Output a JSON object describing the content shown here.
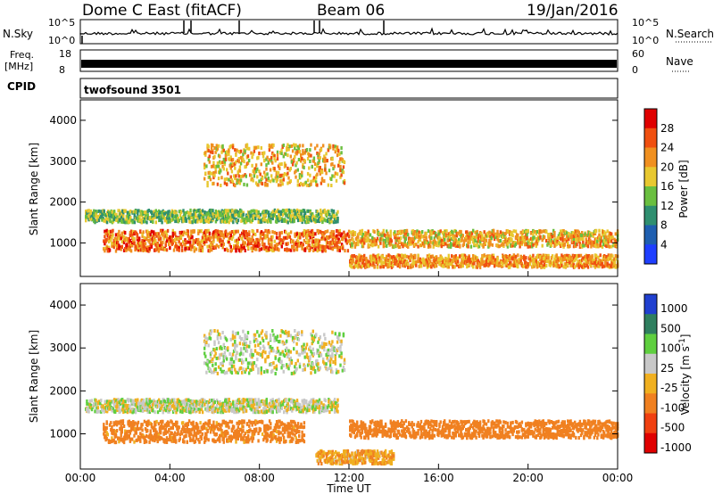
{
  "header": {
    "station": "Dome C East (fitACF)",
    "beam": "Beam 06",
    "date": "19/Jan/2016"
  },
  "top_panels": {
    "nsky_label": "N.Sky",
    "nsky_ticks": [
      "10^5",
      "10^0"
    ],
    "nsearch_label": "N.Search",
    "nsearch_ticks": [
      "10^5",
      "10^0"
    ],
    "freq_label_1": "Freq.",
    "freq_label_2": "[MHz]",
    "freq_ticks": [
      "18",
      "8"
    ],
    "nave_label": "Nave",
    "nave_ticks": [
      "60",
      "0"
    ],
    "cpid_label": "CPID",
    "cpid_value": "twofsound 3501"
  },
  "chart_data": [
    {
      "type": "heatmap",
      "name": "power",
      "ylabel": "Slant Range [km]",
      "xlabel": "",
      "xlim": [
        "00:00",
        "24:00"
      ],
      "ylim": [
        180,
        4500
      ],
      "yticks": [
        "1000",
        "2000",
        "3000",
        "4000"
      ],
      "colorbar": {
        "label": "Power [dB]",
        "ticks": [
          "4",
          "8",
          "12",
          "16",
          "20",
          "24",
          "28"
        ],
        "range": [
          0,
          32
        ],
        "colors": [
          "#1f3fff",
          "#1f5fb0",
          "#2f8f70",
          "#6abf40",
          "#e8c830",
          "#f09020",
          "#f05010",
          "#e00000"
        ]
      },
      "features": [
        {
          "t_start": 0.2,
          "t_end": 11.5,
          "range_km": [
            1500,
            1800
          ],
          "level_db": 14
        },
        {
          "t_start": 1.0,
          "t_end": 12.0,
          "range_km": [
            800,
            1300
          ],
          "level_db": 24
        },
        {
          "t_start": 5.5,
          "t_end": 11.8,
          "range_km": [
            2400,
            3400
          ],
          "level_db": 20
        },
        {
          "t_start": 12.0,
          "t_end": 24.0,
          "range_km": [
            900,
            1300
          ],
          "level_db": 20
        },
        {
          "t_start": 12.0,
          "t_end": 24.0,
          "range_km": [
            400,
            700
          ],
          "level_db": 22
        }
      ]
    },
    {
      "type": "heatmap",
      "name": "velocity",
      "ylabel": "Slant Range [km]",
      "xlabel": "Time UT",
      "xlim": [
        "00:00",
        "24:00"
      ],
      "ylim": [
        180,
        4500
      ],
      "yticks": [
        "1000",
        "2000",
        "3000",
        "4000"
      ],
      "xticks": [
        "00:00",
        "04:00",
        "08:00",
        "12:00",
        "16:00",
        "20:00",
        "00:00"
      ],
      "colorbar": {
        "label": "Velocity [m s",
        "label_sup": "-1",
        "label_end": "]",
        "ticks": [
          "1000",
          "500",
          "100",
          "25",
          "-25",
          "-100",
          "-500",
          "-1000"
        ],
        "colors": [
          "#2040d0",
          "#2f7f5f",
          "#5fcf3f",
          "#c8c8c8",
          "#f0b020",
          "#f08020",
          "#f04010",
          "#e00000"
        ]
      },
      "features": [
        {
          "t_start": 0.2,
          "t_end": 11.5,
          "range_km": [
            1500,
            1800
          ],
          "velocity_ms": 0
        },
        {
          "t_start": 1.0,
          "t_end": 10.0,
          "range_km": [
            800,
            1300
          ],
          "velocity_ms": -150
        },
        {
          "t_start": 5.5,
          "t_end": 11.8,
          "range_km": [
            2400,
            3400
          ],
          "velocity_ms": 0
        },
        {
          "t_start": 12.0,
          "t_end": 24.0,
          "range_km": [
            900,
            1300
          ],
          "velocity_ms": -300
        },
        {
          "t_start": 10.5,
          "t_end": 14.0,
          "range_km": [
            300,
            600
          ],
          "velocity_ms": -80
        }
      ]
    }
  ]
}
